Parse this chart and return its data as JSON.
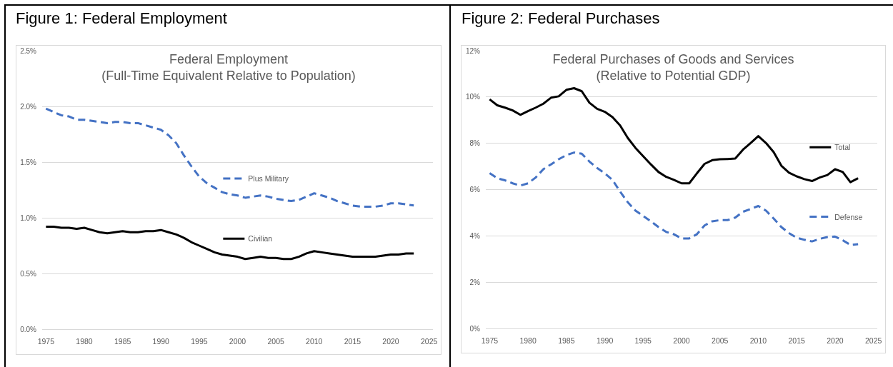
{
  "chart_data": [
    {
      "type": "line",
      "title": "Federal Employment",
      "subtitle": "(Full-Time Equivalent Relative to Population)",
      "annotations": [
        "Figure 1: Federal Employment"
      ],
      "x": [
        1975,
        1976,
        1977,
        1978,
        1979,
        1980,
        1981,
        1982,
        1983,
        1984,
        1985,
        1986,
        1987,
        1988,
        1989,
        1990,
        1991,
        1992,
        1993,
        1994,
        1995,
        1996,
        1997,
        1998,
        1999,
        2000,
        2001,
        2002,
        2003,
        2004,
        2005,
        2006,
        2007,
        2008,
        2009,
        2010,
        2011,
        2012,
        2013,
        2014,
        2015,
        2016,
        2017,
        2018,
        2019,
        2020,
        2021,
        2022,
        2023
      ],
      "series": [
        {
          "name": "Plus Military",
          "color": "#4472c4",
          "line_style": "dashed",
          "values": [
            1.98,
            1.95,
            1.92,
            1.91,
            1.88,
            1.88,
            1.87,
            1.86,
            1.85,
            1.86,
            1.86,
            1.85,
            1.85,
            1.83,
            1.81,
            1.79,
            1.74,
            1.67,
            1.56,
            1.46,
            1.37,
            1.31,
            1.27,
            1.23,
            1.21,
            1.2,
            1.18,
            1.19,
            1.2,
            1.19,
            1.17,
            1.16,
            1.15,
            1.16,
            1.19,
            1.22,
            1.2,
            1.18,
            1.15,
            1.13,
            1.11,
            1.1,
            1.1,
            1.1,
            1.11,
            1.13,
            1.13,
            1.12,
            1.11
          ]
        },
        {
          "name": "Civilian",
          "color": "#000000",
          "line_style": "solid",
          "values": [
            0.92,
            0.92,
            0.91,
            0.91,
            0.9,
            0.91,
            0.89,
            0.87,
            0.86,
            0.87,
            0.88,
            0.87,
            0.87,
            0.88,
            0.88,
            0.89,
            0.87,
            0.85,
            0.82,
            0.78,
            0.75,
            0.72,
            0.69,
            0.67,
            0.66,
            0.65,
            0.63,
            0.64,
            0.65,
            0.64,
            0.64,
            0.63,
            0.63,
            0.65,
            0.68,
            0.7,
            0.69,
            0.68,
            0.67,
            0.66,
            0.65,
            0.65,
            0.65,
            0.65,
            0.66,
            0.67,
            0.67,
            0.68,
            0.68
          ]
        }
      ],
      "xlim": [
        1974.5,
        2025.5
      ],
      "xticks": [
        1975,
        1980,
        1985,
        1990,
        1995,
        2000,
        2005,
        2010,
        2015,
        2020,
        2025
      ],
      "ylim": [
        0,
        2.5
      ],
      "yticks": [
        {
          "value": 0,
          "label": "0.0%"
        },
        {
          "value": 0.5,
          "label": "0.5%"
        },
        {
          "value": 1,
          "label": "1.0%"
        },
        {
          "value": 1.5,
          "label": "1.5%"
        },
        {
          "value": 2,
          "label": "2.0%"
        },
        {
          "value": 2.5,
          "label": "2.5%"
        }
      ],
      "grid": "y",
      "legend": "center"
    },
    {
      "type": "line",
      "title": "Federal Purchases of Goods and Services",
      "subtitle": "(Relative to Potential GDP)",
      "annotations": [
        "Figure 2: Federal Purchases"
      ],
      "x": [
        1975,
        1976,
        1977,
        1978,
        1979,
        1980,
        1981,
        1982,
        1983,
        1984,
        1985,
        1986,
        1987,
        1988,
        1989,
        1990,
        1991,
        1992,
        1993,
        1994,
        1995,
        1996,
        1997,
        1998,
        1999,
        2000,
        2001,
        2002,
        2003,
        2004,
        2005,
        2006,
        2007,
        2008,
        2009,
        2010,
        2011,
        2012,
        2013,
        2014,
        2015,
        2016,
        2017,
        2018,
        2019,
        2020,
        2021,
        2022,
        2023
      ],
      "series": [
        {
          "name": "Total",
          "color": "#000000",
          "line_style": "solid",
          "values": [
            9.9,
            9.64,
            9.54,
            9.42,
            9.23,
            9.39,
            9.54,
            9.71,
            9.97,
            10.03,
            10.31,
            10.38,
            10.25,
            9.75,
            9.49,
            9.36,
            9.13,
            8.77,
            8.23,
            7.8,
            7.44,
            7.09,
            6.76,
            6.55,
            6.42,
            6.27,
            6.27,
            6.7,
            7.11,
            7.27,
            7.31,
            7.32,
            7.34,
            7.72,
            8.01,
            8.31,
            8.01,
            7.62,
            7.03,
            6.73,
            6.57,
            6.45,
            6.37,
            6.52,
            6.63,
            6.88,
            6.76,
            6.32,
            6.49
          ]
        },
        {
          "name": "Defense",
          "color": "#4472c4",
          "line_style": "dashed",
          "values": [
            6.71,
            6.49,
            6.4,
            6.27,
            6.17,
            6.27,
            6.52,
            6.88,
            7.09,
            7.31,
            7.49,
            7.6,
            7.55,
            7.21,
            6.93,
            6.7,
            6.42,
            5.91,
            5.45,
            5.09,
            4.86,
            4.63,
            4.38,
            4.17,
            4.07,
            3.89,
            3.89,
            4.07,
            4.45,
            4.63,
            4.68,
            4.68,
            4.79,
            5.04,
            5.16,
            5.29,
            5.09,
            4.75,
            4.38,
            4.12,
            3.92,
            3.83,
            3.76,
            3.87,
            3.95,
            3.97,
            3.81,
            3.61,
            3.64
          ]
        }
      ],
      "xlim": [
        1974.5,
        2025.5
      ],
      "xticks": [
        1975,
        1980,
        1985,
        1990,
        1995,
        2000,
        2005,
        2010,
        2015,
        2020,
        2025
      ],
      "ylim": [
        0,
        12
      ],
      "yticks": [
        {
          "value": 0,
          "label": "0%"
        },
        {
          "value": 2,
          "label": "2%"
        },
        {
          "value": 4,
          "label": "4%"
        },
        {
          "value": 6,
          "label": "6%"
        },
        {
          "value": 8,
          "label": "8%"
        },
        {
          "value": 10,
          "label": "10%"
        },
        {
          "value": 12,
          "label": "12%"
        }
      ],
      "grid": "y",
      "legend": "right"
    }
  ]
}
